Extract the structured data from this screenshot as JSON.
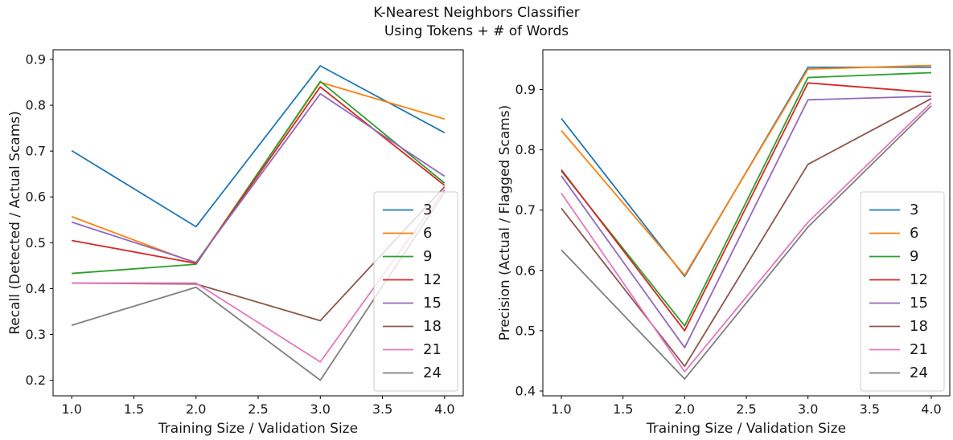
{
  "figure": {
    "title_line1": "K-Nearest Neighbors Classifier",
    "title_line2": "Using Tokens + # of Words"
  },
  "chart_data": [
    {
      "type": "line",
      "name": "recall",
      "xlabel": "Training Size / Validation Size",
      "ylabel": "Recall (Detected / Actual Scams)",
      "x": [
        1.0,
        2.0,
        3.0,
        4.0
      ],
      "xticks": [
        1.0,
        1.5,
        2.0,
        2.5,
        3.0,
        3.5,
        4.0
      ],
      "yticks": [
        0.2,
        0.3,
        0.4,
        0.5,
        0.6,
        0.7,
        0.8,
        0.9
      ],
      "xlim": [
        0.85,
        4.15
      ],
      "ylim": [
        0.166,
        0.921
      ],
      "grid": false,
      "legend_position": "lower right",
      "series": [
        {
          "name": "3",
          "color": "#1f77b4",
          "values": [
            0.701,
            0.535,
            0.886,
            0.74
          ]
        },
        {
          "name": "6",
          "color": "#ff7f0e",
          "values": [
            0.557,
            0.455,
            0.85,
            0.77
          ]
        },
        {
          "name": "9",
          "color": "#2ca02c",
          "values": [
            0.433,
            0.453,
            0.852,
            0.63
          ]
        },
        {
          "name": "12",
          "color": "#d62728",
          "values": [
            0.505,
            0.455,
            0.84,
            0.625
          ]
        },
        {
          "name": "15",
          "color": "#9467bd",
          "values": [
            0.545,
            0.457,
            0.825,
            0.645
          ]
        },
        {
          "name": "18",
          "color": "#8c564b",
          "values": [
            0.412,
            0.41,
            0.33,
            0.622
          ]
        },
        {
          "name": "21",
          "color": "#e377c2",
          "values": [
            0.412,
            0.412,
            0.24,
            0.616
          ]
        },
        {
          "name": "24",
          "color": "#7f7f7f",
          "values": [
            0.32,
            0.403,
            0.2,
            0.61
          ]
        }
      ]
    },
    {
      "type": "line",
      "name": "precision",
      "xlabel": "Training Size / Validation Size",
      "ylabel": "Precision (Actual / Flagged Scams)",
      "x": [
        1.0,
        2.0,
        3.0,
        4.0
      ],
      "xticks": [
        1.0,
        1.5,
        2.0,
        2.5,
        3.0,
        3.5,
        4.0
      ],
      "yticks": [
        0.4,
        0.5,
        0.6,
        0.7,
        0.8,
        0.9
      ],
      "xlim": [
        0.85,
        4.15
      ],
      "ylim": [
        0.392,
        0.966
      ],
      "grid": false,
      "legend_position": "lower right",
      "series": [
        {
          "name": "3",
          "color": "#1f77b4",
          "values": [
            0.852,
            0.59,
            0.937,
            0.937
          ]
        },
        {
          "name": "6",
          "color": "#ff7f0e",
          "values": [
            0.832,
            0.592,
            0.934,
            0.94
          ]
        },
        {
          "name": "9",
          "color": "#2ca02c",
          "values": [
            0.765,
            0.508,
            0.92,
            0.928
          ]
        },
        {
          "name": "12",
          "color": "#d62728",
          "values": [
            0.767,
            0.5,
            0.911,
            0.895
          ]
        },
        {
          "name": "15",
          "color": "#9467bd",
          "values": [
            0.757,
            0.472,
            0.883,
            0.889
          ]
        },
        {
          "name": "18",
          "color": "#8c564b",
          "values": [
            0.703,
            0.441,
            0.776,
            0.885
          ]
        },
        {
          "name": "21",
          "color": "#e377c2",
          "values": [
            0.728,
            0.432,
            0.68,
            0.878
          ]
        },
        {
          "name": "24",
          "color": "#7f7f7f",
          "values": [
            0.634,
            0.42,
            0.672,
            0.873
          ]
        }
      ]
    }
  ]
}
